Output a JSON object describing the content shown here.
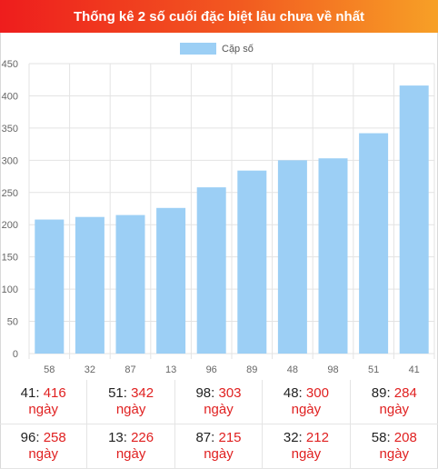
{
  "header": {
    "title": "Thống kê 2 số cuối đặc biệt lâu chưa về nhất"
  },
  "colors": {
    "bar": "#9ccff5",
    "accent_red": "#e02020",
    "header_start": "#ee1d1d",
    "header_end": "#f7a026"
  },
  "chart_data": {
    "type": "bar",
    "title": "",
    "xlabel": "",
    "ylabel": "",
    "categories": [
      "58",
      "32",
      "87",
      "13",
      "96",
      "89",
      "48",
      "98",
      "51",
      "41"
    ],
    "series": [
      {
        "name": "Cặp số",
        "values": [
          208,
          212,
          215,
          226,
          258,
          284,
          300,
          303,
          342,
          416
        ]
      }
    ],
    "ylim": [
      0,
      450
    ],
    "yticks": [
      "0",
      "50",
      "100",
      "150",
      "200",
      "250",
      "300",
      "350",
      "400",
      "450"
    ],
    "grid": true,
    "legend_position": "top-center"
  },
  "table": {
    "unit": "ngày",
    "rows": [
      [
        {
          "pair": "41",
          "days": "416"
        },
        {
          "pair": "51",
          "days": "342"
        },
        {
          "pair": "98",
          "days": "303"
        },
        {
          "pair": "48",
          "days": "300"
        },
        {
          "pair": "89",
          "days": "284"
        }
      ],
      [
        {
          "pair": "96",
          "days": "258"
        },
        {
          "pair": "13",
          "days": "226"
        },
        {
          "pair": "87",
          "days": "215"
        },
        {
          "pair": "32",
          "days": "212"
        },
        {
          "pair": "58",
          "days": "208"
        }
      ]
    ]
  }
}
